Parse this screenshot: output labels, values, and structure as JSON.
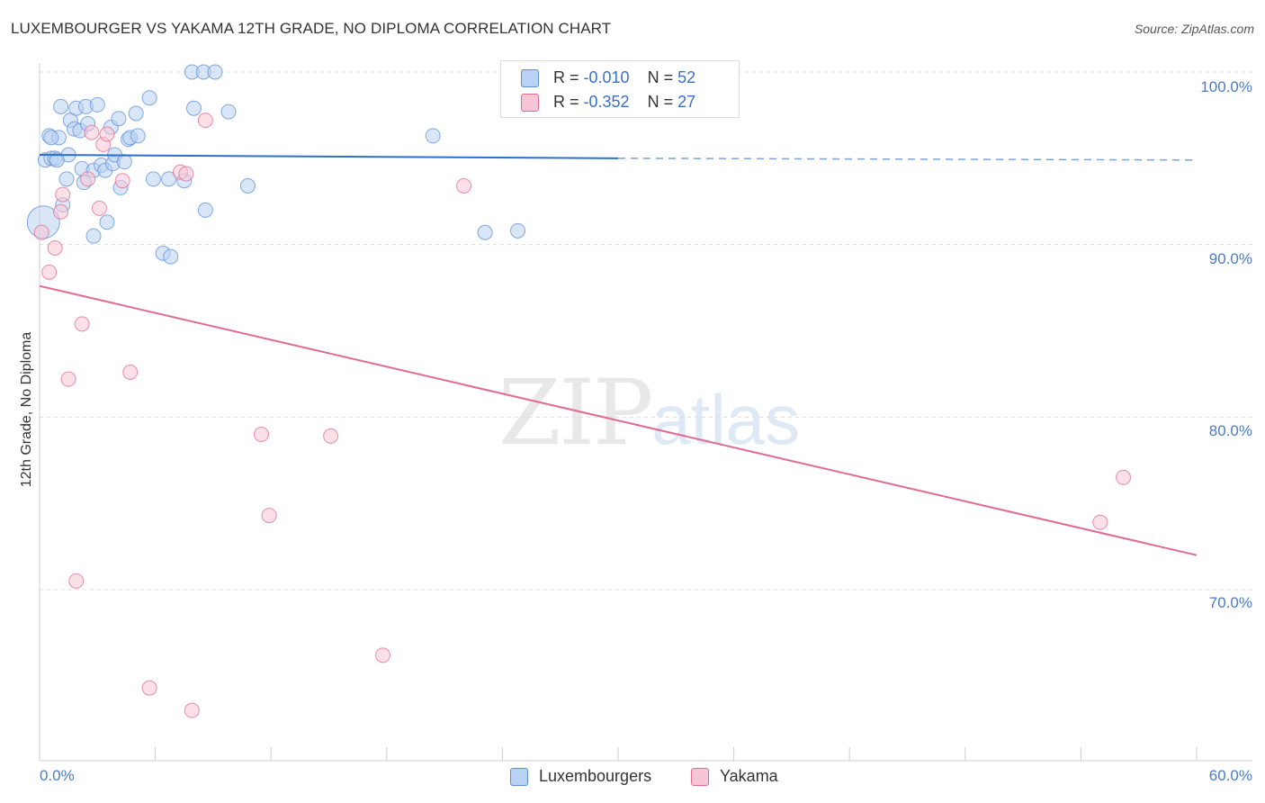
{
  "title": "LUXEMBOURGER VS YAKAMA 12TH GRADE, NO DIPLOMA CORRELATION CHART",
  "source": "Source: ZipAtlas.com",
  "watermark": {
    "zip": "ZIP",
    "atlas": "atlas"
  },
  "colors": {
    "blue": "#5b8fd6",
    "blue_fill": "#b9d1f2",
    "pink": "#e06a94",
    "pink_fill": "#f7c6d6",
    "tick_label": "#4a7cc4"
  },
  "legend": {
    "rows": [
      {
        "r_label": "R = ",
        "r_value": "-0.010",
        "n_label": "N = ",
        "n_value": "52",
        "series": "blue"
      },
      {
        "r_label": "R = ",
        "r_value": "-0.352",
        "n_label": "N = ",
        "n_value": "27",
        "series": "pink"
      }
    ]
  },
  "bottom_legend": [
    "Luxembourgers",
    "Yakama"
  ],
  "chart_data": {
    "type": "scatter",
    "title": "LUXEMBOURGER VS YAKAMA 12TH GRADE, NO DIPLOMA CORRELATION CHART",
    "xlabel": "",
    "ylabel": "12th Grade, No Diploma",
    "xlim": [
      0,
      60
    ],
    "ylim": [
      61,
      101
    ],
    "x_tick_labels": [
      "0.0%",
      "60.0%"
    ],
    "y_ticks": [
      70,
      80,
      90,
      100
    ],
    "y_tick_labels": [
      "70.0%",
      "80.0%",
      "90.0%",
      "100.0%"
    ],
    "series": [
      {
        "name": "Luxembourgers",
        "color": "#5b8fd6",
        "points": [
          [
            0.2,
            91.3
          ],
          [
            0.3,
            94.9
          ],
          [
            0.5,
            96.3
          ],
          [
            0.6,
            95.0
          ],
          [
            0.8,
            95.0
          ],
          [
            1.0,
            96.2
          ],
          [
            1.1,
            98.0
          ],
          [
            1.2,
            92.3
          ],
          [
            1.4,
            93.8
          ],
          [
            1.5,
            95.2
          ],
          [
            1.6,
            97.2
          ],
          [
            1.8,
            96.7
          ],
          [
            1.9,
            97.9
          ],
          [
            2.1,
            96.6
          ],
          [
            2.2,
            94.4
          ],
          [
            2.3,
            93.6
          ],
          [
            2.4,
            98.0
          ],
          [
            2.5,
            97.0
          ],
          [
            2.8,
            94.3
          ],
          [
            2.8,
            90.5
          ],
          [
            3.0,
            98.1
          ],
          [
            3.2,
            94.6
          ],
          [
            3.4,
            94.3
          ],
          [
            3.5,
            91.3
          ],
          [
            3.7,
            96.8
          ],
          [
            3.8,
            94.7
          ],
          [
            3.9,
            95.2
          ],
          [
            4.1,
            97.3
          ],
          [
            4.2,
            93.3
          ],
          [
            4.4,
            94.8
          ],
          [
            4.6,
            96.1
          ],
          [
            4.7,
            96.2
          ],
          [
            5.0,
            97.6
          ],
          [
            5.1,
            96.3
          ],
          [
            5.7,
            98.5
          ],
          [
            5.9,
            93.8
          ],
          [
            6.4,
            89.5
          ],
          [
            6.7,
            93.8
          ],
          [
            6.8,
            89.3
          ],
          [
            7.5,
            93.7
          ],
          [
            7.9,
            100.0
          ],
          [
            8.0,
            97.9
          ],
          [
            8.5,
            100.0
          ],
          [
            8.6,
            92.0
          ],
          [
            9.1,
            100.0
          ],
          [
            9.8,
            97.7
          ],
          [
            10.8,
            93.4
          ],
          [
            20.4,
            96.3
          ],
          [
            23.1,
            90.7
          ],
          [
            24.8,
            90.8
          ],
          [
            0.6,
            96.2
          ],
          [
            0.9,
            94.9
          ]
        ]
      },
      {
        "name": "Yakama",
        "color": "#e06a94",
        "points": [
          [
            0.1,
            90.7
          ],
          [
            0.5,
            88.4
          ],
          [
            0.8,
            89.8
          ],
          [
            1.1,
            91.9
          ],
          [
            1.2,
            92.9
          ],
          [
            1.5,
            82.2
          ],
          [
            1.9,
            70.5
          ],
          [
            2.2,
            85.4
          ],
          [
            2.5,
            93.8
          ],
          [
            2.7,
            96.5
          ],
          [
            3.1,
            92.1
          ],
          [
            3.3,
            95.8
          ],
          [
            3.5,
            96.4
          ],
          [
            4.3,
            93.7
          ],
          [
            4.7,
            82.6
          ],
          [
            5.7,
            64.3
          ],
          [
            7.3,
            94.2
          ],
          [
            7.6,
            94.1
          ],
          [
            7.9,
            63.0
          ],
          [
            8.6,
            97.2
          ],
          [
            11.5,
            79.0
          ],
          [
            11.9,
            74.3
          ],
          [
            15.1,
            78.9
          ],
          [
            17.8,
            66.2
          ],
          [
            22.0,
            93.4
          ],
          [
            55.0,
            73.9
          ],
          [
            56.2,
            76.5
          ]
        ]
      }
    ],
    "trendlines": [
      {
        "series": "Luxembourgers",
        "x": [
          0,
          30
        ],
        "y": [
          95.2,
          95.0
        ],
        "dashed_to": [
          60,
          94.9
        ]
      },
      {
        "series": "Yakama",
        "x": [
          0,
          60
        ],
        "y": [
          87.6,
          72.0
        ]
      }
    ]
  }
}
